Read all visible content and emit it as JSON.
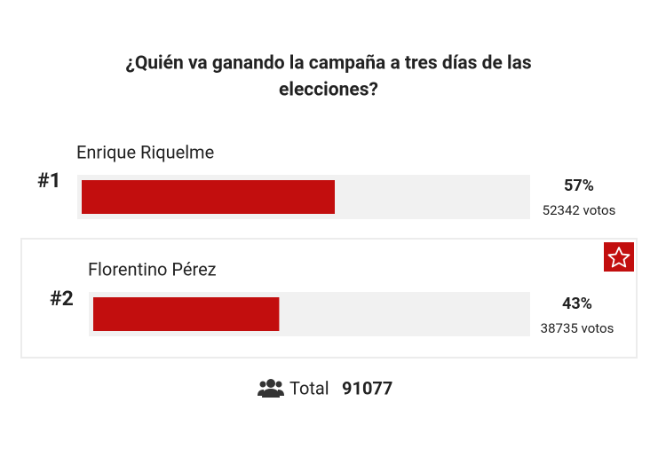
{
  "chart_data": {
    "type": "bar",
    "title_lines": [
      "¿Quién va ganando la campaña a tres días de las",
      "elecciones?"
    ],
    "ranks": [
      "#1",
      "#2"
    ],
    "categories": [
      "Enrique Riquelme",
      "Florentino Pérez"
    ],
    "values": [
      57,
      43
    ],
    "value_labels": [
      "57%",
      "43%"
    ],
    "vote_labels": [
      "52342 votos",
      "38735 votos"
    ],
    "color": "#c20e0e",
    "xlim": [
      0,
      100
    ],
    "total_label": "Total",
    "total": 91077
  }
}
